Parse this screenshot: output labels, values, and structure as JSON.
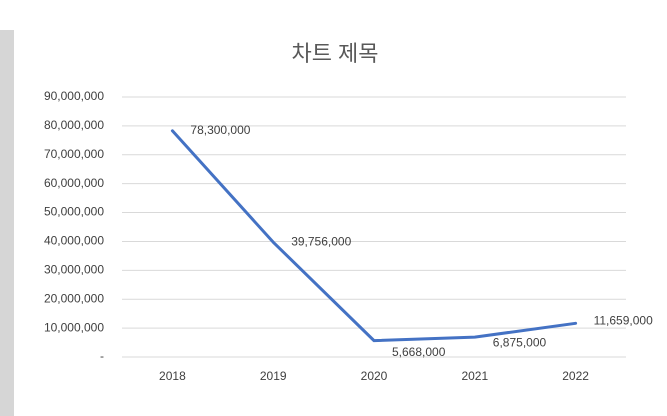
{
  "chart_data": {
    "type": "line",
    "title": "차트 제목",
    "categories": [
      "2018",
      "2019",
      "2020",
      "2021",
      "2022"
    ],
    "values": [
      78300000,
      39756000,
      5668000,
      6875000,
      11659000
    ],
    "value_labels": [
      "78,300,000",
      "39,756,000",
      "5,668,000",
      "6,875,000",
      "11,659,000"
    ],
    "color": "#4472c4",
    "ylim": [
      0,
      90000000
    ],
    "yticks": [
      {
        "value": 0,
        "label": "-"
      },
      {
        "value": 10000000,
        "label": "10,000,000"
      },
      {
        "value": 20000000,
        "label": "20,000,000"
      },
      {
        "value": 30000000,
        "label": "30,000,000"
      },
      {
        "value": 40000000,
        "label": "40,000,000"
      },
      {
        "value": 50000000,
        "label": "50,000,000"
      },
      {
        "value": 60000000,
        "label": "60,000,000"
      },
      {
        "value": 70000000,
        "label": "70,000,000"
      },
      {
        "value": 80000000,
        "label": "80,000,000"
      },
      {
        "value": 90000000,
        "label": "90,000,000"
      }
    ],
    "grid": true
  }
}
